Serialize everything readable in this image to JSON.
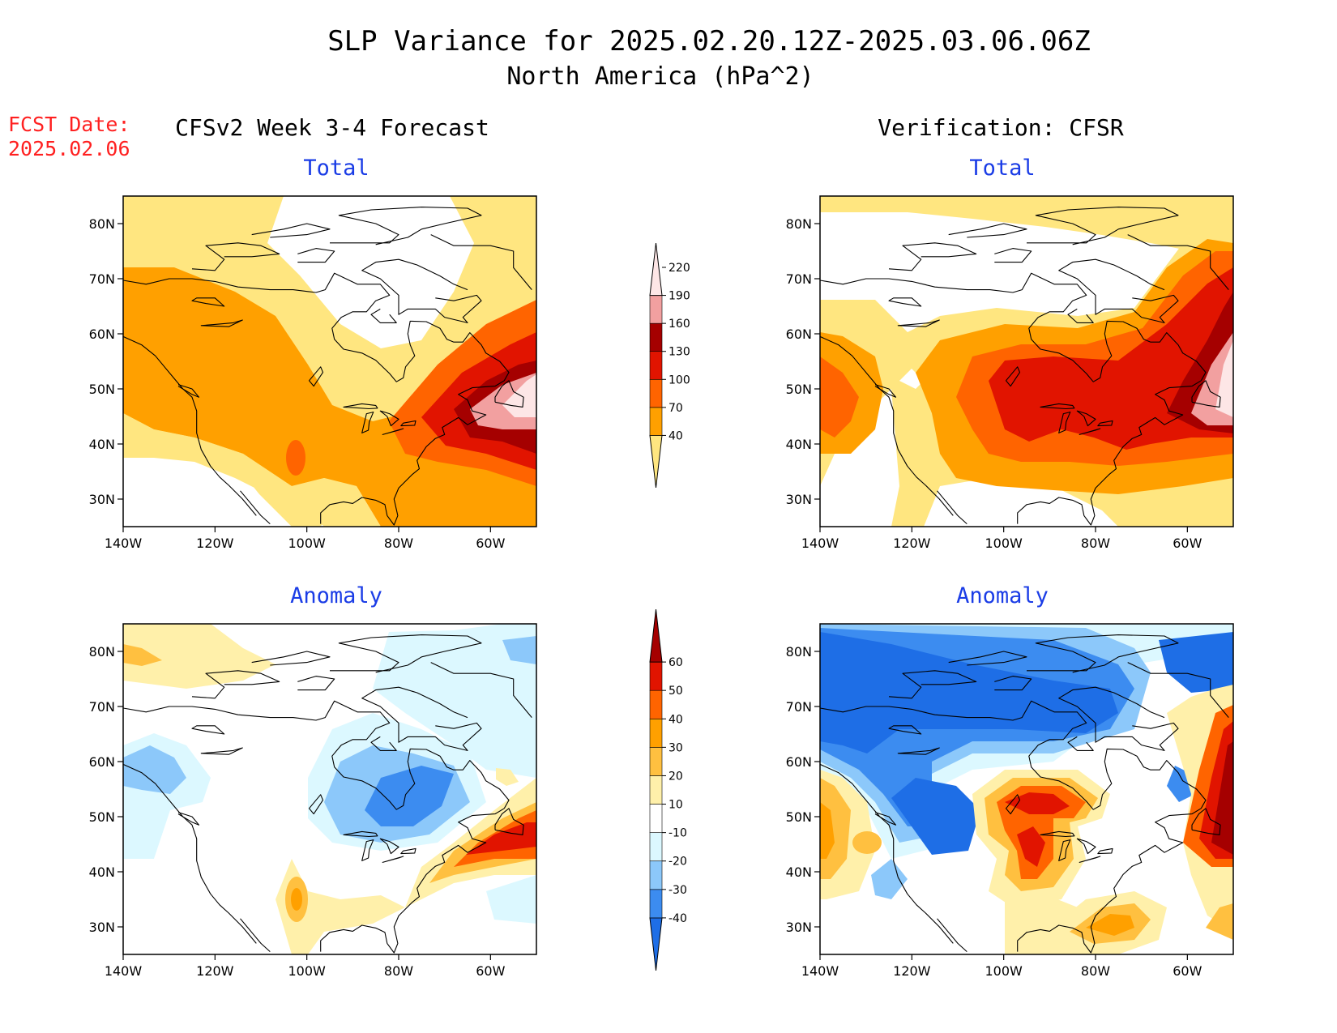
{
  "header": {
    "title": "SLP Variance for 2025.02.20.12Z-2025.03.06.06Z",
    "subtitle": "North America (hPa^2)",
    "fcst_label": "FCST Date:",
    "fcst_date": "2025.02.06"
  },
  "columns": {
    "left": "CFSv2 Week 3-4 Forecast",
    "right": "Verification: CFSR"
  },
  "panels": [
    {
      "title": "Total",
      "kind": "total",
      "source": "forecast"
    },
    {
      "title": "Total",
      "kind": "total",
      "source": "verification"
    },
    {
      "title": "Anomaly",
      "kind": "anomaly",
      "source": "forecast"
    },
    {
      "title": "Anomaly",
      "kind": "anomaly",
      "source": "verification"
    }
  ],
  "axes": {
    "lat_ticks": [
      "80N",
      "70N",
      "60N",
      "50N",
      "40N",
      "30N"
    ],
    "lon_ticks": [
      "140W",
      "120W",
      "100W",
      "80W",
      "60W"
    ],
    "lat_range": [
      25,
      85
    ],
    "lon_range": [
      -140,
      -50
    ]
  },
  "colorbars": {
    "total": {
      "labels": [
        "40",
        "70",
        "100",
        "130",
        "160",
        "190",
        "220"
      ],
      "colors": [
        "#ffe680",
        "#ffa000",
        "#ff6400",
        "#e11400",
        "#a50000",
        "#f2a0a0",
        "#fde6e6"
      ]
    },
    "anomaly": {
      "labels": [
        "-40",
        "-30",
        "-20",
        "-10",
        "10",
        "20",
        "30",
        "40",
        "50",
        "60"
      ],
      "colors": [
        "#1e6ee6",
        "#3c8cf0",
        "#8cc8fa",
        "#dcf8ff",
        "#ffffff",
        "#fff0aa",
        "#ffc040",
        "#ffa000",
        "#ff6400",
        "#e11400",
        "#a50000"
      ]
    }
  },
  "colors": {
    "title_blue": "#1a3ce6",
    "fcst_red": "#ff2020"
  }
}
